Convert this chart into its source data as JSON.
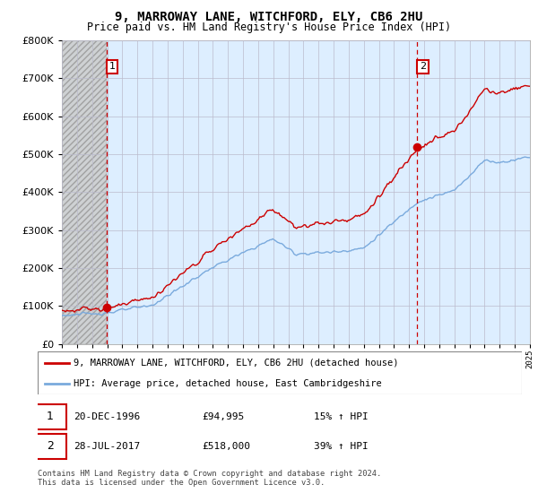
{
  "title": "9, MARROWAY LANE, WITCHFORD, ELY, CB6 2HU",
  "subtitle": "Price paid vs. HM Land Registry's House Price Index (HPI)",
  "sale1_date": "20-DEC-1996",
  "sale1_price": 94995,
  "sale1_hpi": "15% ↑ HPI",
  "sale2_date": "28-JUL-2017",
  "sale2_price": 518000,
  "sale2_hpi": "39% ↑ HPI",
  "legend_line1": "9, MARROWAY LANE, WITCHFORD, ELY, CB6 2HU (detached house)",
  "legend_line2": "HPI: Average price, detached house, East Cambridgeshire",
  "footer": "Contains HM Land Registry data © Crown copyright and database right 2024.\nThis data is licensed under the Open Government Licence v3.0.",
  "hpi_color": "#7aaadd",
  "price_color": "#cc0000",
  "vline_color": "#cc0000",
  "hatch_facecolor": "#e0e0e0",
  "chart_bg": "#ddeeff",
  "grid_color": "#bbbbcc",
  "ylim": [
    0,
    800000
  ],
  "sale1_year_f": 1996.958,
  "sale2_year_f": 2017.542,
  "xstart": 1994,
  "xend": 2025
}
